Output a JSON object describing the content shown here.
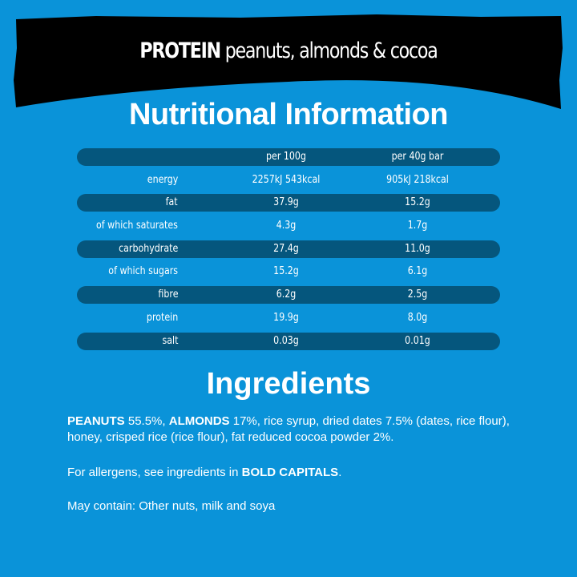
{
  "banner": {
    "bold": "PROTEIN",
    "rest": " peanuts, almonds & cocoa"
  },
  "nutrition": {
    "title": "Nutritional Information",
    "headers": [
      "",
      "per 100g",
      "per 40g bar"
    ],
    "rows": [
      [
        "energy",
        "2257kJ 543kcal",
        "905kJ 218kcal"
      ],
      [
        "fat",
        "37.9g",
        "15.2g"
      ],
      [
        "of which saturates",
        "4.3g",
        "1.7g"
      ],
      [
        "carbohydrate",
        "27.4g",
        "11.0g"
      ],
      [
        "of which sugars",
        "15.2g",
        "6.1g"
      ],
      [
        "fibre",
        "6.2g",
        "2.5g"
      ],
      [
        "protein",
        "19.9g",
        "8.0g"
      ],
      [
        "salt",
        "0.03g",
        "0.01g"
      ]
    ]
  },
  "ingredients": {
    "title": "Ingredients",
    "p1_b1": "PEANUTS",
    "p1_t1": " 55.5%, ",
    "p1_b2": "ALMONDS",
    "p1_t2": " 17%, rice syrup, dried dates 7.5% (dates, rice flour), honey, crisped rice (rice flour), fat reduced cocoa powder 2%.",
    "p2_t1": "For allergens, see ingredients in ",
    "p2_b1": "BOLD CAPITALS",
    "p2_t2": ".",
    "p3": "May contain: Other nuts, milk and soya"
  },
  "colors": {
    "background": "#0a93d9",
    "row_dark": "#05567d",
    "banner": "#000000"
  }
}
